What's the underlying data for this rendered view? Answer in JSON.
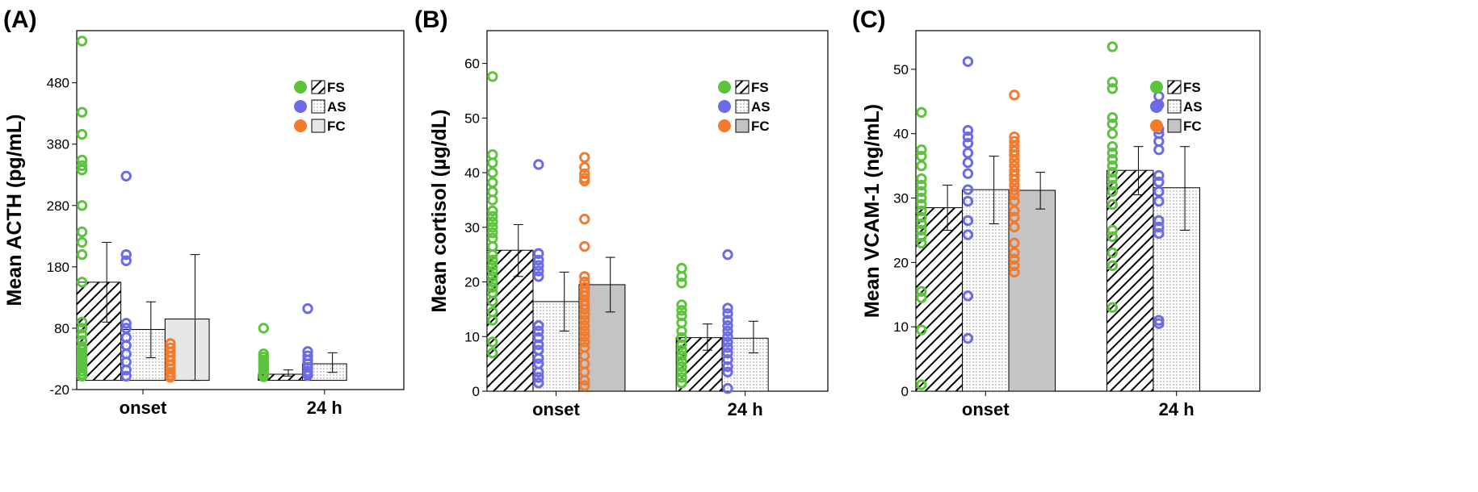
{
  "colors": {
    "FS": "#5cc43c",
    "AS": "#6b6be6",
    "FC": "#f47a2c",
    "frame": "#000000",
    "fc_fill_light": "#e6e6e6",
    "fc_fill_dark": "#c4c4c4"
  },
  "legend": [
    {
      "key": "FS",
      "label": "FS",
      "pattern": "diagonal-hatch"
    },
    {
      "key": "AS",
      "label": "AS",
      "pattern": "dots"
    },
    {
      "key": "FC",
      "label": "FC",
      "pattern": "solid-gray"
    }
  ],
  "chart_data": [
    {
      "type": "bar",
      "panel_label": "(A)",
      "ylabel": "Mean ACTH (pg/mL)",
      "ylim": [
        -20,
        565
      ],
      "yticks": [
        -20,
        80,
        180,
        280,
        380,
        480
      ],
      "categories": [
        "onset",
        "24 h"
      ],
      "legend_position": "top-right",
      "fc_fill": "fc_fill_light",
      "series": [
        {
          "name": "FS",
          "values": [
            155,
            5
          ],
          "error": [
            [
              90,
              220
            ],
            [
              2,
              12
            ]
          ],
          "points": [
            [
              548,
              432,
              396,
              354,
              345,
              338,
              280,
              237,
              220,
              200,
              155,
              90,
              80,
              70,
              60,
              50,
              45,
              40,
              35,
              30,
              25,
              20,
              15,
              10,
              5,
              2
            ],
            [
              80,
              38,
              33,
              28,
              23,
              18,
              13,
              8,
              4,
              1
            ]
          ]
        },
        {
          "name": "AS",
          "values": [
            78,
            22
          ],
          "error": [
            [
              32,
              123
            ],
            [
              8,
              40
            ]
          ],
          "points": [
            [
              328,
              200,
              190,
              88,
              80,
              65,
              52,
              38,
              25,
              12,
              2
            ],
            [
              112,
              42,
              35,
              28,
              22,
              16,
              10,
              6,
              3
            ]
          ]
        },
        {
          "name": "FC",
          "values": [
            95,
            null
          ],
          "error": [
            [
              -5,
              200
            ],
            null
          ],
          "points": [
            [
              55,
              48,
              41,
              34,
              27,
              20,
              14,
              8,
              3,
              0
            ],
            []
          ]
        }
      ]
    },
    {
      "type": "bar",
      "panel_label": "(B)",
      "ylabel": "Mean cortisol (µg/dL)",
      "ylim": [
        0,
        66
      ],
      "yticks": [
        0,
        10,
        20,
        30,
        40,
        50,
        60
      ],
      "categories": [
        "onset",
        "24 h"
      ],
      "legend_position": "top-right",
      "fc_fill": "fc_fill_dark",
      "series": [
        {
          "name": "FS",
          "values": [
            25.8,
            9.8
          ],
          "error": [
            [
              21,
              30.5
            ],
            [
              7.5,
              12.3
            ]
          ],
          "points": [
            [
              57.6,
              43.3,
              41.8,
              40,
              38.2,
              36.5,
              35,
              33,
              32,
              31,
              30,
              29,
              28,
              26.5,
              25,
              24,
              23,
              22,
              21,
              20,
              19,
              18,
              16.5,
              14.5,
              13,
              9,
              7
            ],
            [
              22.5,
              21,
              19.8,
              15.8,
              14.8,
              13.8,
              12.5,
              11,
              9.8,
              8.5,
              7.5,
              6.5,
              5.5,
              4.5,
              3.5,
              2.5,
              1.5
            ]
          ]
        },
        {
          "name": "AS",
          "values": [
            16.4,
            9.7
          ],
          "error": [
            [
              11,
              21.8
            ],
            [
              7,
              12.8
            ]
          ],
          "points": [
            [
              41.5,
              25.2,
              24,
              23,
              22,
              21,
              12,
              11,
              9.8,
              8.5,
              7.5,
              6,
              5,
              3.5,
              2.5,
              1.5
            ],
            [
              25,
              15.2,
              14.2,
              13,
              12,
              11,
              10,
              9,
              8,
              7,
              5.8,
              4.5,
              3.5,
              0.5
            ]
          ]
        },
        {
          "name": "FC",
          "values": [
            19.5,
            null
          ],
          "error": [
            [
              14.5,
              24.5
            ],
            null
          ],
          "points": [
            [
              42.8,
              41,
              39.8,
              39,
              38.5,
              31.5,
              26.5,
              21,
              20,
              19,
              18.2,
              17.5,
              16.5,
              15.8,
              15,
              14,
              13,
              12,
              11,
              10,
              9,
              8,
              6.5,
              5,
              3.5,
              2,
              1
            ],
            []
          ]
        }
      ]
    },
    {
      "type": "bar",
      "panel_label": "(C)",
      "ylabel": "Mean VCAM-1 (ng/mL)",
      "ylim": [
        0,
        56
      ],
      "yticks": [
        0,
        10,
        20,
        30,
        40,
        50
      ],
      "categories": [
        "onset",
        "24 h"
      ],
      "legend_position": "top-right",
      "fc_fill": "fc_fill_dark",
      "series": [
        {
          "name": "FS",
          "values": [
            28.5,
            34.3
          ],
          "error": [
            [
              25,
              32
            ],
            [
              30.5,
              38
            ]
          ],
          "points": [
            [
              43.3,
              37.5,
              36.5,
              35,
              33,
              32,
              31,
              30,
              29,
              28,
              27,
              26,
              25,
              24,
              23,
              15.5,
              14.5,
              9.5,
              1
            ],
            [
              53.5,
              48,
              47,
              42.5,
              41.5,
              40,
              38,
              37,
              36,
              35,
              34,
              33,
              32,
              31,
              29,
              25,
              24,
              21.5,
              19.5,
              13
            ]
          ]
        },
        {
          "name": "AS",
          "values": [
            31.3,
            31.6
          ],
          "error": [
            [
              26,
              36.5
            ],
            [
              25,
              38
            ]
          ],
          "points": [
            [
              51.2,
              40.5,
              39.5,
              38.5,
              37,
              35.5,
              33.8,
              31.3,
              29.5,
              26.5,
              24.3,
              14.8,
              8.2
            ],
            [
              45.8,
              44.5,
              40.7,
              40,
              38.8,
              37.5,
              33.5,
              32.5,
              31,
              29.5,
              26.5,
              25.5,
              24.5,
              11,
              10.5
            ]
          ]
        },
        {
          "name": "FC",
          "values": [
            31.2,
            null
          ],
          "error": [
            [
              28.3,
              34
            ],
            null
          ],
          "points": [
            [
              46,
              39.5,
              38.8,
              38,
              37.3,
              36.6,
              35.8,
              35,
              34.2,
              33.5,
              32.8,
              32,
              31.2,
              30.5,
              29.5,
              28,
              27,
              25.5,
              23,
              21.5,
              20.5,
              19.5,
              18.5
            ],
            []
          ]
        }
      ]
    }
  ]
}
